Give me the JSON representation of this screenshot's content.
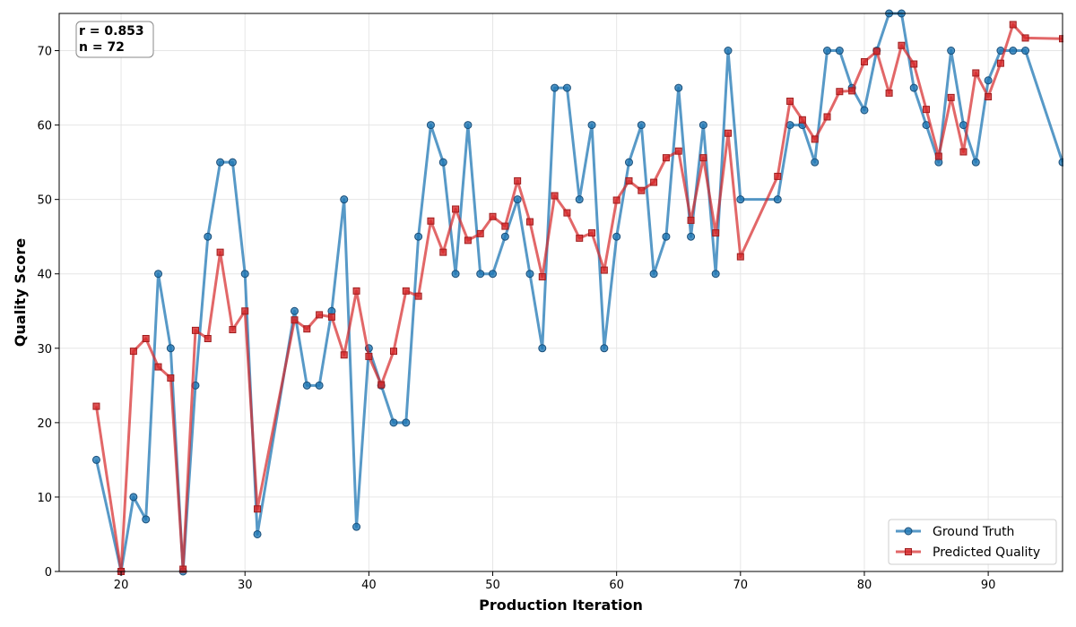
{
  "chart_data": {
    "type": "line",
    "title": "",
    "xlabel": "Production Iteration",
    "ylabel": "Quality Score",
    "xlim": [
      15,
      96
    ],
    "ylim": [
      0,
      75
    ],
    "xticks": [
      20,
      30,
      40,
      50,
      60,
      70,
      80,
      90
    ],
    "yticks": [
      0,
      10,
      20,
      30,
      40,
      50,
      60,
      70
    ],
    "grid": true,
    "legend_position": "bottom-right",
    "annotation": {
      "line1": "r = 0.853",
      "line2": "n = 72"
    },
    "series": [
      {
        "name": "Ground Truth",
        "color": "#1f77b4",
        "marker": "circle",
        "points": [
          [
            18,
            15
          ],
          [
            20,
            0
          ],
          [
            21,
            10
          ],
          [
            22,
            7
          ],
          [
            23,
            40
          ],
          [
            24,
            30
          ],
          [
            25,
            0
          ],
          [
            26,
            25
          ],
          [
            27,
            45
          ],
          [
            28,
            55
          ],
          [
            29,
            55
          ],
          [
            30,
            40
          ],
          [
            31,
            5
          ],
          [
            34,
            35
          ],
          [
            35,
            25
          ],
          [
            36,
            25
          ],
          [
            37,
            35
          ],
          [
            38,
            50
          ],
          [
            39,
            6
          ],
          [
            40,
            30
          ],
          [
            41,
            25
          ],
          [
            42,
            20
          ],
          [
            43,
            20
          ],
          [
            44,
            45
          ],
          [
            45,
            60
          ],
          [
            46,
            55
          ],
          [
            47,
            40
          ],
          [
            48,
            60
          ],
          [
            49,
            40
          ],
          [
            50,
            40
          ],
          [
            51,
            45
          ],
          [
            52,
            50
          ],
          [
            53,
            40
          ],
          [
            54,
            30
          ],
          [
            55,
            65
          ],
          [
            56,
            65
          ],
          [
            57,
            50
          ],
          [
            58,
            60
          ],
          [
            59,
            30
          ],
          [
            60,
            45
          ],
          [
            61,
            55
          ],
          [
            62,
            60
          ],
          [
            63,
            40
          ],
          [
            64,
            45
          ],
          [
            65,
            65
          ],
          [
            66,
            45
          ],
          [
            67,
            60
          ],
          [
            68,
            40
          ],
          [
            69,
            70
          ],
          [
            70,
            50
          ],
          [
            73,
            50
          ],
          [
            74,
            60
          ],
          [
            75,
            60
          ],
          [
            76,
            55
          ],
          [
            77,
            70
          ],
          [
            78,
            70
          ],
          [
            79,
            65
          ],
          [
            80,
            62
          ],
          [
            81,
            70
          ],
          [
            82,
            75
          ],
          [
            83,
            75
          ],
          [
            84,
            65
          ],
          [
            85,
            60
          ],
          [
            86,
            55
          ],
          [
            87,
            70
          ],
          [
            88,
            60
          ],
          [
            89,
            55
          ],
          [
            90,
            66
          ],
          [
            91,
            70
          ],
          [
            92,
            70
          ],
          [
            93,
            70
          ],
          [
            96,
            55
          ]
        ]
      },
      {
        "name": "Predicted Quality",
        "color": "#d62728",
        "marker": "square",
        "points": [
          [
            18,
            22.2
          ],
          [
            20,
            0
          ],
          [
            21,
            29.6
          ],
          [
            22,
            31.3
          ],
          [
            23,
            27.5
          ],
          [
            24,
            26
          ],
          [
            25,
            0.3
          ],
          [
            26,
            32.4
          ],
          [
            27,
            31.3
          ],
          [
            28,
            42.9
          ],
          [
            29,
            32.5
          ],
          [
            30,
            35
          ],
          [
            31,
            8.4
          ],
          [
            34,
            33.8
          ],
          [
            35,
            32.6
          ],
          [
            36,
            34.5
          ],
          [
            37,
            34.2
          ],
          [
            38,
            29.1
          ],
          [
            39,
            37.7
          ],
          [
            40,
            28.9
          ],
          [
            41,
            25.1
          ],
          [
            42,
            29.6
          ],
          [
            43,
            37.7
          ],
          [
            44,
            37
          ],
          [
            45,
            47.1
          ],
          [
            46,
            42.9
          ],
          [
            47,
            48.7
          ],
          [
            48,
            44.5
          ],
          [
            49,
            45.4
          ],
          [
            50,
            47.7
          ],
          [
            51,
            46.4
          ],
          [
            52,
            52.5
          ],
          [
            53,
            47
          ],
          [
            54,
            39.6
          ],
          [
            55,
            50.5
          ],
          [
            56,
            48.2
          ],
          [
            57,
            44.8
          ],
          [
            58,
            45.5
          ],
          [
            59,
            40.5
          ],
          [
            60,
            49.9
          ],
          [
            61,
            52.5
          ],
          [
            62,
            51.2
          ],
          [
            63,
            52.3
          ],
          [
            64,
            55.6
          ],
          [
            65,
            56.5
          ],
          [
            66,
            47.2
          ],
          [
            67,
            55.6
          ],
          [
            68,
            45.5
          ],
          [
            69,
            58.9
          ],
          [
            70,
            42.3
          ],
          [
            73,
            53.1
          ],
          [
            74,
            63.2
          ],
          [
            75,
            60.7
          ],
          [
            76,
            58.1
          ],
          [
            77,
            61.1
          ],
          [
            78,
            64.5
          ],
          [
            79,
            64.6
          ],
          [
            80,
            68.5
          ],
          [
            81,
            69.9
          ],
          [
            82,
            64.3
          ],
          [
            83,
            70.7
          ],
          [
            84,
            68.2
          ],
          [
            85,
            62.1
          ],
          [
            86,
            55.8
          ],
          [
            87,
            63.7
          ],
          [
            88,
            56.4
          ],
          [
            89,
            67
          ],
          [
            90,
            63.8
          ],
          [
            91,
            68.3
          ],
          [
            92,
            73.5
          ],
          [
            93,
            71.7
          ],
          [
            96,
            71.6
          ]
        ]
      }
    ]
  }
}
